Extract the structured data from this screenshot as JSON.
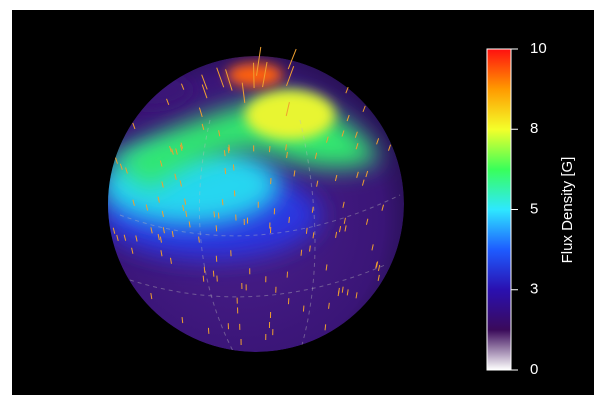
{
  "chart_data": {
    "type": "colorbar",
    "colorbar_label": "Flux Density [G]",
    "ylim": [
      0,
      10
    ],
    "yticks": [
      0,
      {
        "value": 2.5,
        "label": "3"
      },
      5,
      {
        "value": 7.5,
        "label": "8"
      },
      10
    ],
    "colormap": [
      "#ffffff",
      "#3a0a5a",
      "#2a10b0",
      "#1e5cff",
      "#2ee8ff",
      "#39ff5a",
      "#f4ff2a",
      "#ff9a00",
      "#ff1010"
    ]
  }
}
